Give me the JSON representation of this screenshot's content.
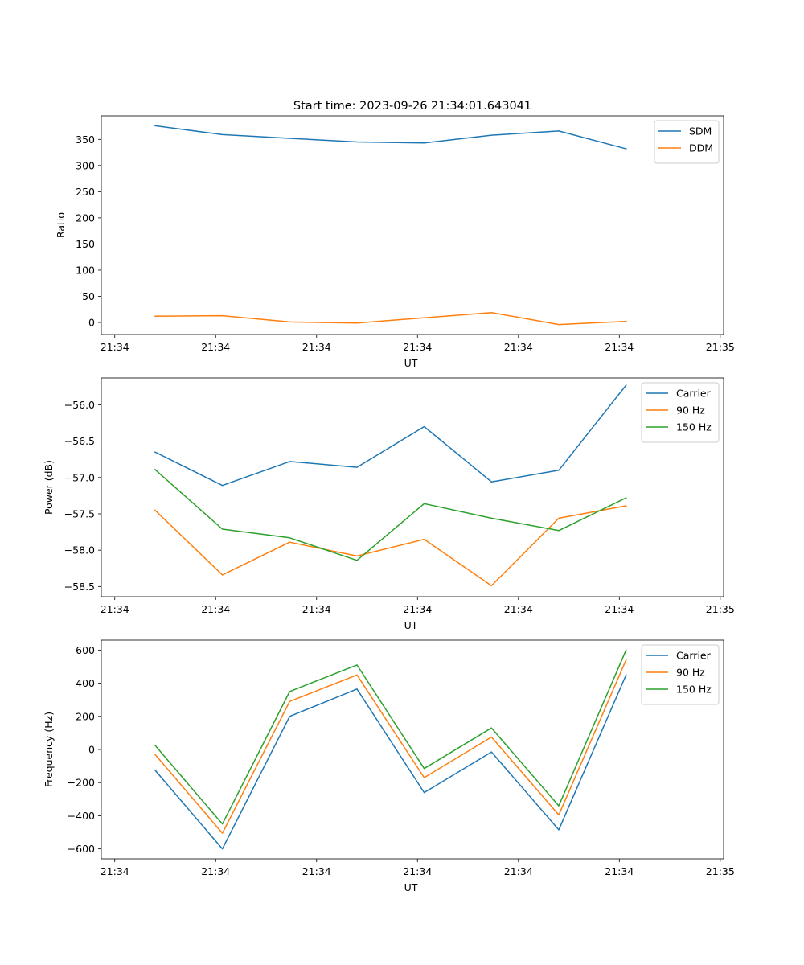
{
  "figure_title": "Start time: 2023-09-26 21:34:01.643041",
  "chart_data": [
    {
      "type": "line",
      "title": "Start time: 2023-09-26 21:34:01.643041",
      "xlabel": "UT",
      "ylabel": "Ratio",
      "x": [
        1,
        2,
        3,
        4,
        5,
        6,
        7,
        8
      ],
      "xlim": [
        0.2,
        9.45
      ],
      "x_ticks": [
        0.4,
        1.9,
        3.4,
        4.9,
        6.4,
        7.9,
        9.4
      ],
      "x_tick_labels": [
        "21:34",
        "21:34",
        "21:34",
        "21:34",
        "21:34",
        "21:34",
        "21:34"
      ],
      "x_last_tick_label": "21:35",
      "ylim": [
        -23,
        395
      ],
      "y_ticks": [
        0,
        50,
        100,
        150,
        200,
        250,
        300,
        350
      ],
      "y_tick_labels": [
        "0",
        "50",
        "100",
        "150",
        "200",
        "250",
        "300",
        "350"
      ],
      "legend_position": "upper right",
      "series": [
        {
          "name": "SDM",
          "color": "#1f77b4",
          "values": [
            376,
            359,
            352,
            345,
            343,
            358,
            366,
            332
          ]
        },
        {
          "name": "DDM",
          "color": "#ff7f0e",
          "values": [
            12,
            13,
            1,
            -1,
            9,
            19,
            -4,
            2
          ]
        }
      ]
    },
    {
      "type": "line",
      "xlabel": "UT",
      "ylabel": "Power (dB)",
      "x": [
        1,
        2,
        3,
        4,
        5,
        6,
        7,
        8
      ],
      "xlim": [
        0.2,
        9.45
      ],
      "x_ticks": [
        0.4,
        1.9,
        3.4,
        4.9,
        6.4,
        7.9,
        9.4
      ],
      "x_tick_labels": [
        "21:34",
        "21:34",
        "21:34",
        "21:34",
        "21:34",
        "21:34",
        "21:34"
      ],
      "x_last_tick_label": "21:35",
      "ylim": [
        -58.64,
        -55.63
      ],
      "y_ticks": [
        -58.5,
        -58.0,
        -57.5,
        -57.0,
        -56.5,
        -56.0
      ],
      "y_tick_labels": [
        "−58.5",
        "−58.0",
        "−57.5",
        "−57.0",
        "−56.5",
        "−56.0"
      ],
      "legend_position": "upper right",
      "series": [
        {
          "name": "Carrier",
          "color": "#1f77b4",
          "values": [
            -56.65,
            -57.11,
            -56.78,
            -56.86,
            -56.3,
            -57.06,
            -56.9,
            -55.73
          ]
        },
        {
          "name": "90 Hz",
          "color": "#ff7f0e",
          "values": [
            -57.45,
            -58.34,
            -57.89,
            -58.08,
            -57.85,
            -58.49,
            -57.56,
            -57.39
          ]
        },
        {
          "name": "150 Hz",
          "color": "#2ca02c",
          "values": [
            -56.89,
            -57.71,
            -57.83,
            -58.14,
            -57.36,
            -57.56,
            -57.73,
            -57.28
          ]
        }
      ]
    },
    {
      "type": "line",
      "xlabel": "UT",
      "ylabel": "Frequency (Hz)",
      "x": [
        1,
        2,
        3,
        4,
        5,
        6,
        7,
        8
      ],
      "xlim": [
        0.2,
        9.45
      ],
      "x_ticks": [
        0.4,
        1.9,
        3.4,
        4.9,
        6.4,
        7.9,
        9.4
      ],
      "x_tick_labels": [
        "21:34",
        "21:34",
        "21:34",
        "21:34",
        "21:34",
        "21:34",
        "21:34"
      ],
      "x_last_tick_label": "21:35",
      "ylim": [
        -660,
        660
      ],
      "y_ticks": [
        -600,
        -400,
        -200,
        0,
        200,
        400,
        600
      ],
      "y_tick_labels": [
        "−600",
        "−400",
        "−200",
        "0",
        "200",
        "400",
        "600"
      ],
      "legend_position": "upper right",
      "series": [
        {
          "name": "Carrier",
          "color": "#1f77b4",
          "values": [
            -125,
            -600,
            200,
            365,
            -260,
            -15,
            -485,
            450
          ]
        },
        {
          "name": "90 Hz",
          "color": "#ff7f0e",
          "values": [
            -30,
            -505,
            290,
            450,
            -170,
            75,
            -395,
            540
          ]
        },
        {
          "name": "150 Hz",
          "color": "#2ca02c",
          "values": [
            25,
            -450,
            350,
            510,
            -115,
            130,
            -340,
            600
          ]
        }
      ]
    }
  ]
}
